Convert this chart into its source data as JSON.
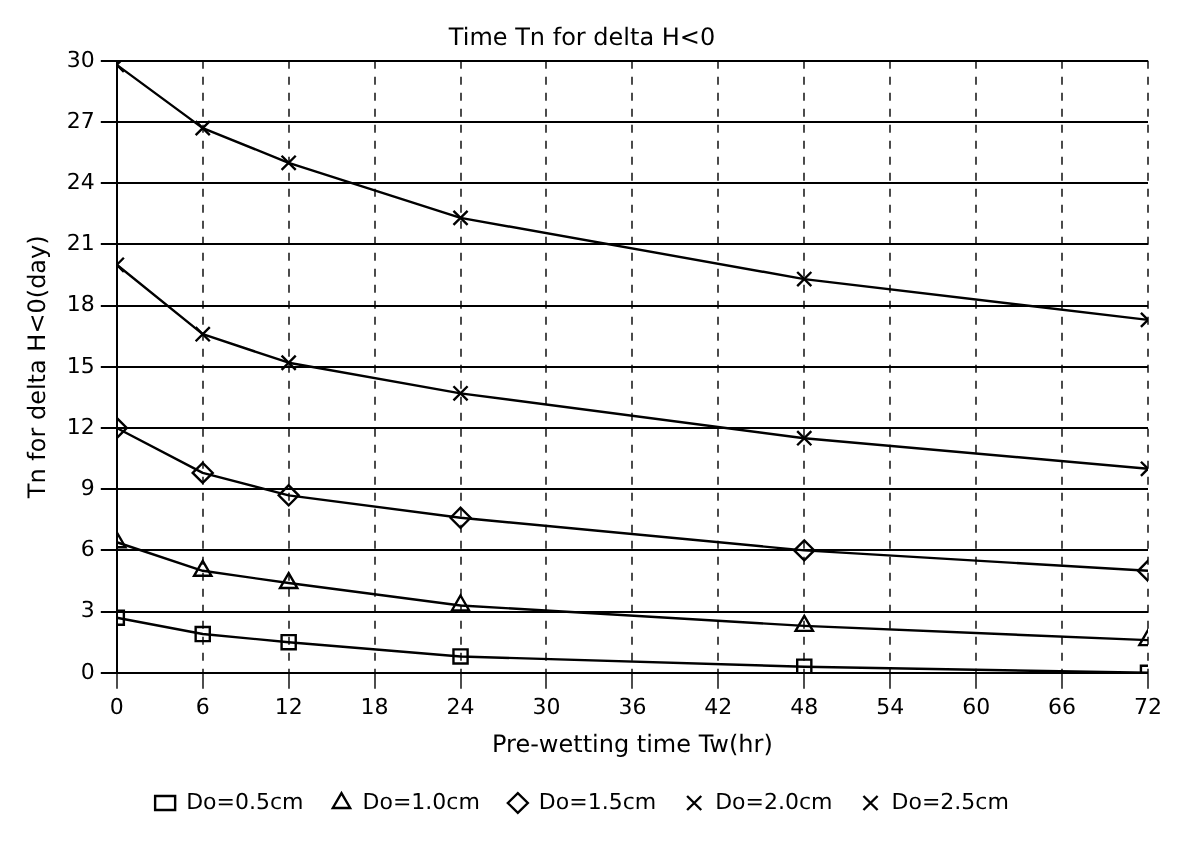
{
  "chart_data": {
    "type": "line",
    "title": "Time Tn for delta H<0",
    "xlabel": "Pre-wetting time Tw(hr)",
    "ylabel": "Tn for delta H<0(day)",
    "x": [
      0,
      6,
      12,
      24,
      48,
      72
    ],
    "xlim": [
      0,
      72
    ],
    "xticks": [
      0,
      6,
      12,
      18,
      24,
      30,
      36,
      42,
      48,
      54,
      60,
      66,
      72
    ],
    "ylim": [
      0,
      30
    ],
    "yticks": [
      0,
      3,
      6,
      9,
      12,
      15,
      18,
      21,
      24,
      27,
      30
    ],
    "grid": true,
    "legend": "bottom",
    "line_style": "solid",
    "series": [
      {
        "name": "Do=0.5cm",
        "color": "#000000",
        "marker": "square",
        "values": [
          2.7,
          1.9,
          1.5,
          0.8,
          0.3,
          0
        ]
      },
      {
        "name": "Do=1.0cm",
        "color": "#000000",
        "marker": "triangle",
        "values": [
          6.4,
          5.0,
          4.4,
          3.3,
          2.3,
          1.6
        ]
      },
      {
        "name": "Do=1.5cm",
        "color": "#000000",
        "marker": "diamond",
        "values": [
          12,
          9.8,
          8.7,
          7.6,
          6.0,
          5.0
        ]
      },
      {
        "name": "Do=2.0cm",
        "color": "#000000",
        "marker": "cross",
        "values": [
          20,
          16.6,
          15.2,
          13.7,
          11.5,
          10.0
        ]
      },
      {
        "name": "Do=2.5cm",
        "color": "#000000",
        "marker": "cross",
        "values": [
          29.8,
          26.7,
          25,
          22.3,
          19.3,
          17.3
        ]
      }
    ]
  }
}
